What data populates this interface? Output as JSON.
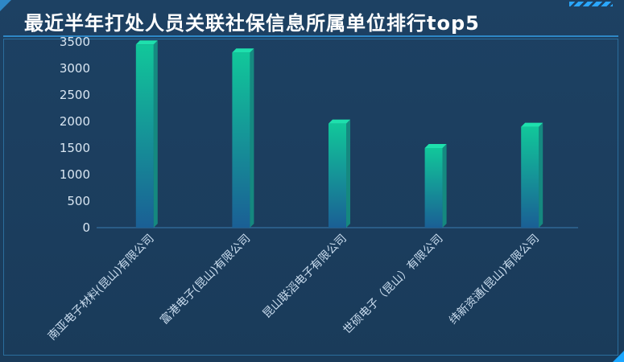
{
  "header": {
    "title": "最近半年打处人员关联社保信息所属单位排行top5"
  },
  "colors": {
    "bar_top": "#11c79a",
    "bar_bottom": "#1a5f95",
    "axis": "#3a7ab0",
    "text": "#d9e6f2"
  },
  "chart_data": {
    "type": "bar",
    "categories": [
      "南亚电子材料(昆山)有限公司",
      "富港电子(昆山)有限公司",
      "昆山联滔电子有限公司",
      "世硕电子（昆山）有限公司",
      "纬新资通(昆山)有限公司"
    ],
    "values": [
      3450,
      3300,
      1960,
      1500,
      1900
    ],
    "ylim": [
      0,
      3500
    ],
    "yticks": [
      0,
      500,
      1000,
      1500,
      2000,
      2500,
      3000,
      3500
    ],
    "grid": false
  }
}
